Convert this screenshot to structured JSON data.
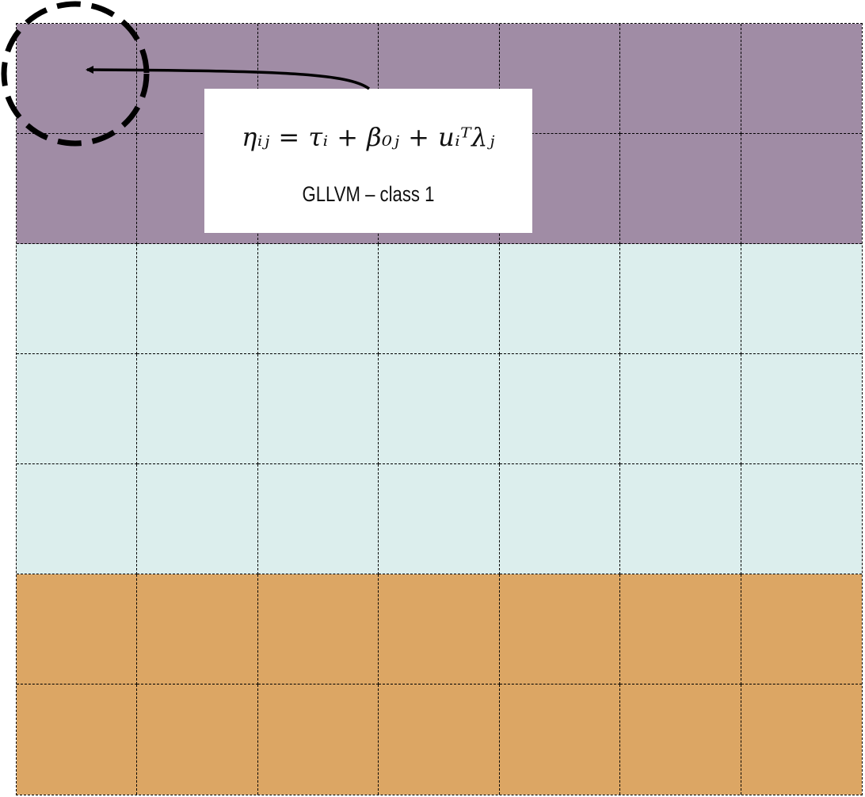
{
  "diagram": {
    "columns": 7,
    "row_classes": [
      "class1",
      "class1",
      "class2",
      "class2",
      "class2",
      "class3",
      "class3"
    ],
    "class_colors": {
      "class1": "#a08ca5",
      "class2": "#dceeed",
      "class3": "#dca664"
    },
    "grid_line_color": "#000000",
    "highlighted_cell": {
      "row": 0,
      "col": 0
    }
  },
  "callout": {
    "equation": "ηᵢⱼ = τᵢ + β₀ⱼ + uᵢᵀλⱼ",
    "label": "GLLVM – class 1"
  },
  "icons": {
    "highlight": "dashed-circle-icon",
    "pointer": "arrow-icon"
  }
}
